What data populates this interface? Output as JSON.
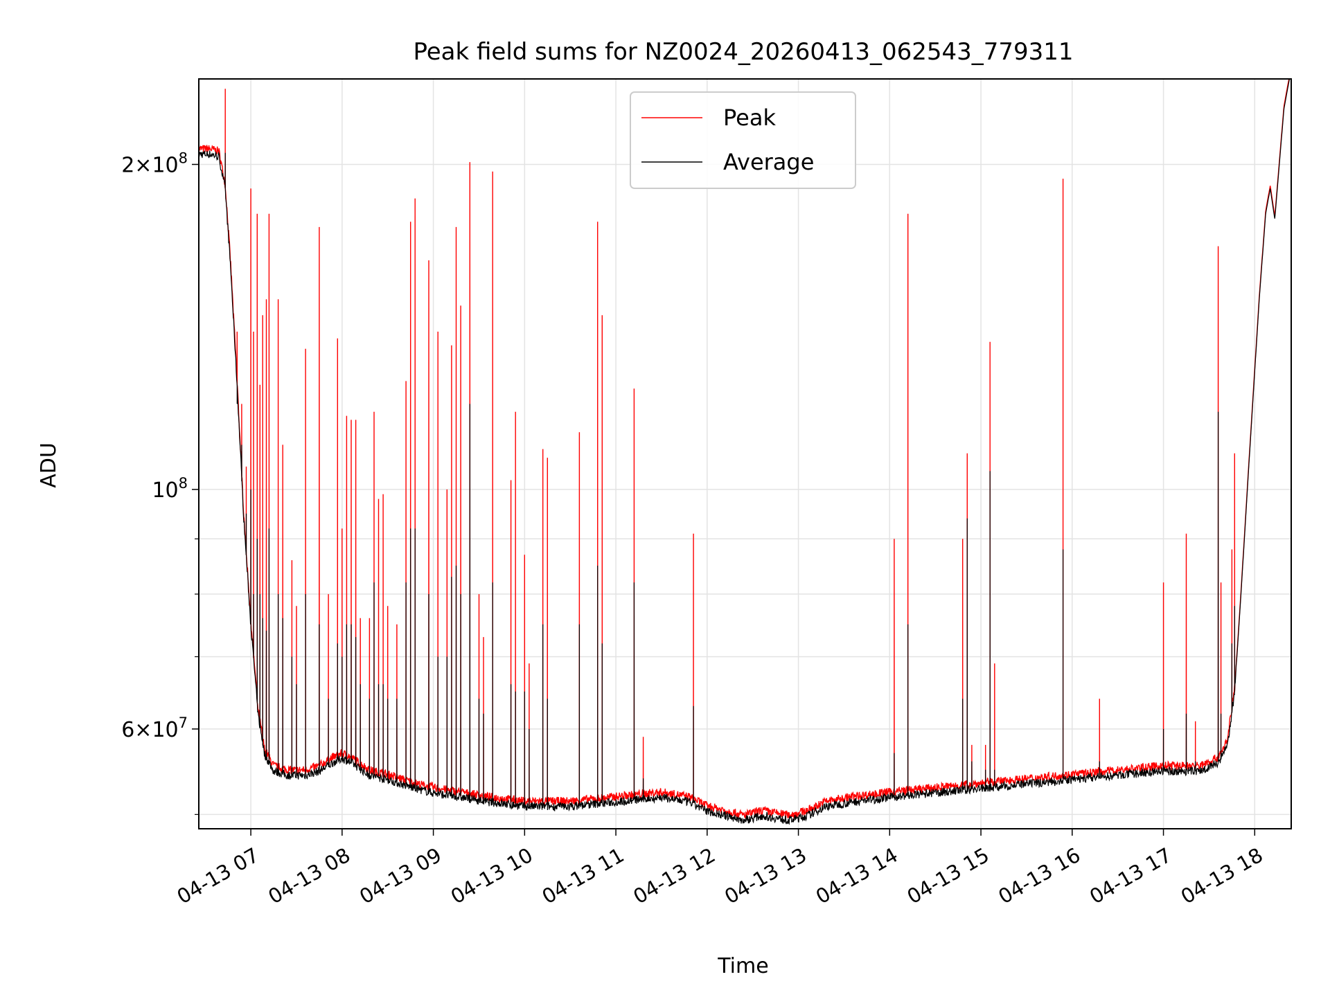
{
  "chart_data": {
    "type": "line",
    "title": "Peak field sums for NZ0024_20260413_062543_779311",
    "xlabel": "Time",
    "ylabel": "ADU",
    "yscale": "log",
    "xlim_hours": [
      6.43,
      18.4
    ],
    "ylim": [
      48500000,
      240000000
    ],
    "grid": true,
    "legend_loc": "upper center",
    "x_tick_labels": [
      "04-13 07",
      "04-13 08",
      "04-13 09",
      "04-13 10",
      "04-13 11",
      "04-13 12",
      "04-13 13",
      "04-13 14",
      "04-13 15",
      "04-13 16",
      "04-13 17",
      "04-13 18"
    ],
    "x_tick_hours": [
      7,
      8,
      9,
      10,
      11,
      12,
      13,
      14,
      15,
      16,
      17,
      18
    ],
    "y_major_ticks": [
      {
        "value": 60000000,
        "mantissa": "6",
        "exponent": "7",
        "times": "×"
      },
      {
        "value": 100000000,
        "mantissa": "",
        "exponent": "8",
        "times": ""
      },
      {
        "value": 200000000,
        "mantissa": "2",
        "exponent": "8",
        "times": "×"
      }
    ],
    "y_minor_ticks": [
      50000000,
      70000000,
      80000000,
      90000000
    ],
    "series": [
      {
        "name": "Peak",
        "color": "#ff0000"
      },
      {
        "name": "Average",
        "color": "#000000"
      }
    ],
    "baseline": [
      [
        6.43,
        205
      ],
      [
        6.55,
        205
      ],
      [
        6.65,
        204
      ],
      [
        6.72,
        190
      ],
      [
        6.78,
        160
      ],
      [
        6.85,
        125
      ],
      [
        6.92,
        95
      ],
      [
        7.0,
        75
      ],
      [
        7.08,
        62
      ],
      [
        7.15,
        57
      ],
      [
        7.25,
        55
      ],
      [
        7.4,
        54.5
      ],
      [
        7.6,
        54.5
      ],
      [
        7.75,
        55
      ],
      [
        7.9,
        56
      ],
      [
        8.0,
        56.5
      ],
      [
        8.1,
        56
      ],
      [
        8.3,
        54.5
      ],
      [
        8.5,
        54
      ],
      [
        8.8,
        53
      ],
      [
        9.0,
        52.5
      ],
      [
        9.3,
        52
      ],
      [
        9.6,
        51.5
      ],
      [
        10.0,
        51
      ],
      [
        10.5,
        51
      ],
      [
        11.0,
        51.5
      ],
      [
        11.5,
        52
      ],
      [
        11.8,
        51.5
      ],
      [
        12.0,
        50.5
      ],
      [
        12.2,
        50
      ],
      [
        12.4,
        49.5
      ],
      [
        12.6,
        50
      ],
      [
        12.9,
        49.5
      ],
      [
        13.1,
        50
      ],
      [
        13.3,
        51
      ],
      [
        13.6,
        51.5
      ],
      [
        14.0,
        52
      ],
      [
        14.5,
        52.5
      ],
      [
        15.0,
        53
      ],
      [
        15.5,
        53.5
      ],
      [
        16.0,
        54
      ],
      [
        16.5,
        54.5
      ],
      [
        17.0,
        55
      ],
      [
        17.4,
        55
      ],
      [
        17.6,
        56
      ],
      [
        17.7,
        58
      ],
      [
        17.78,
        65
      ],
      [
        17.85,
        80
      ],
      [
        17.95,
        110
      ],
      [
        18.05,
        150
      ],
      [
        18.12,
        180
      ],
      [
        18.17,
        190
      ],
      [
        18.22,
        178
      ],
      [
        18.27,
        200
      ],
      [
        18.32,
        225
      ],
      [
        18.4,
        245
      ]
    ],
    "spikes": [
      [
        6.72,
        235,
        205
      ],
      [
        6.85,
        140,
        120
      ],
      [
        6.9,
        120,
        110
      ],
      [
        6.95,
        105,
        95
      ],
      [
        7.0,
        190,
        100
      ],
      [
        7.03,
        140,
        80
      ],
      [
        7.07,
        180,
        90
      ],
      [
        7.1,
        125,
        80
      ],
      [
        7.13,
        145,
        76
      ],
      [
        7.17,
        150,
        74
      ],
      [
        7.2,
        180,
        92
      ],
      [
        7.3,
        150,
        80
      ],
      [
        7.35,
        110,
        76
      ],
      [
        7.45,
        86,
        70
      ],
      [
        7.5,
        78,
        66
      ],
      [
        7.6,
        135,
        80
      ],
      [
        7.75,
        175,
        75
      ],
      [
        7.85,
        80,
        64
      ],
      [
        7.95,
        138,
        72
      ],
      [
        8.0,
        92,
        70
      ],
      [
        8.05,
        117,
        75
      ],
      [
        8.1,
        116,
        75
      ],
      [
        8.15,
        116,
        73
      ],
      [
        8.2,
        76,
        66
      ],
      [
        8.3,
        76,
        64
      ],
      [
        8.35,
        118,
        82
      ],
      [
        8.4,
        98,
        66
      ],
      [
        8.45,
        99,
        66
      ],
      [
        8.5,
        78,
        64
      ],
      [
        8.6,
        75,
        64
      ],
      [
        8.7,
        126,
        82
      ],
      [
        8.75,
        177,
        92
      ],
      [
        8.8,
        186,
        92
      ],
      [
        8.95,
        163,
        80
      ],
      [
        9.05,
        140,
        70
      ],
      [
        9.15,
        100,
        70
      ],
      [
        9.2,
        136,
        83
      ],
      [
        9.25,
        175,
        85
      ],
      [
        9.3,
        148,
        80
      ],
      [
        9.4,
        201,
        120
      ],
      [
        9.5,
        80,
        64
      ],
      [
        9.55,
        73,
        62
      ],
      [
        9.65,
        197,
        82
      ],
      [
        9.85,
        102,
        66
      ],
      [
        9.9,
        118,
        65
      ],
      [
        10.0,
        87,
        65
      ],
      [
        10.05,
        69,
        60
      ],
      [
        10.2,
        109,
        75
      ],
      [
        10.25,
        107,
        64
      ],
      [
        10.6,
        113,
        75
      ],
      [
        10.8,
        177,
        85
      ],
      [
        10.85,
        145,
        72
      ],
      [
        11.2,
        124,
        82
      ],
      [
        11.3,
        59,
        54
      ],
      [
        11.85,
        91,
        63
      ],
      [
        14.05,
        90,
        57
      ],
      [
        14.2,
        180,
        75
      ],
      [
        14.8,
        90,
        64
      ],
      [
        14.85,
        108,
        94
      ],
      [
        14.9,
        58,
        56
      ],
      [
        15.05,
        58,
        55
      ],
      [
        15.1,
        137,
        104
      ],
      [
        15.15,
        69,
        55
      ],
      [
        15.9,
        194,
        88
      ],
      [
        16.3,
        64,
        56
      ],
      [
        17.0,
        82,
        60
      ],
      [
        17.25,
        91,
        62
      ],
      [
        17.35,
        61,
        56
      ],
      [
        17.6,
        168,
        118
      ],
      [
        17.63,
        82,
        62
      ],
      [
        17.75,
        88,
        72
      ],
      [
        17.78,
        108,
        78
      ]
    ]
  }
}
